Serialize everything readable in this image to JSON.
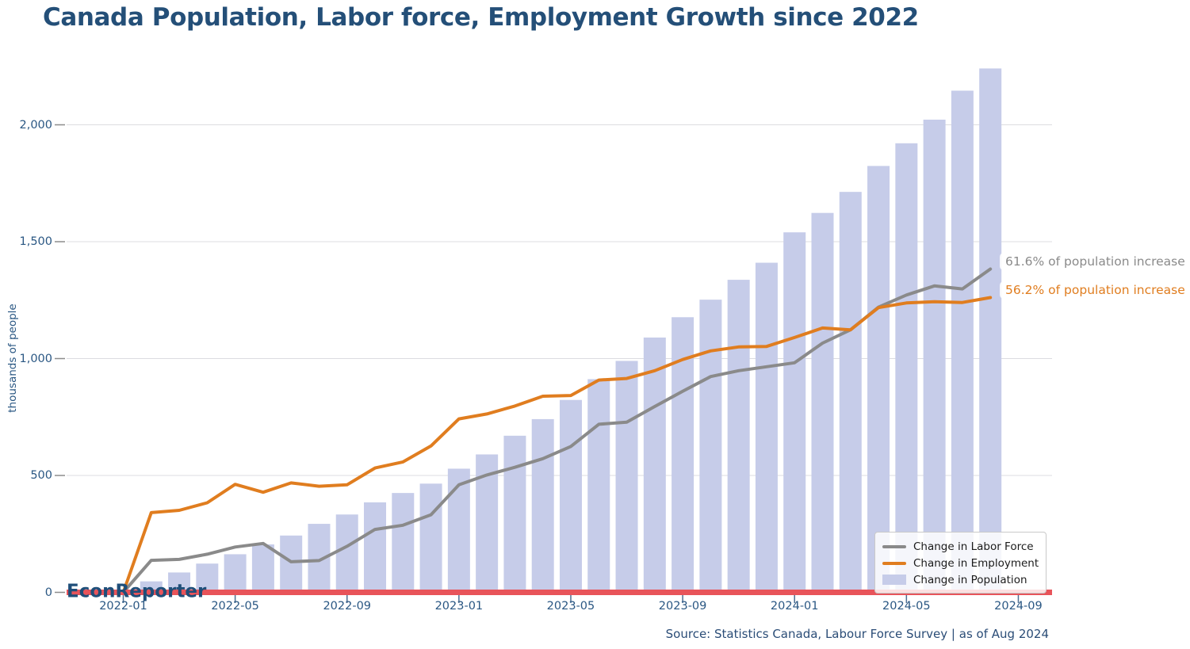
{
  "header": {
    "title": "Canada Population, Labor force, Employment Growth since 2022"
  },
  "watermark": "EconReporter",
  "source_note": "Source: Statistics Canada, Labour Force Survey | as of Aug 2024",
  "annotations": {
    "labor_force": "61.6% of population increase",
    "employment": "56.2% of population increase"
  },
  "colors": {
    "title_text": "#244f78",
    "axis_text": "#2a5783",
    "gridline": "#dcdce0",
    "y_tick_dash": "#8c8c8c",
    "x_tick_mark": "#4d6e92",
    "zero_baseline": "#e8545a",
    "bar_fill": "#c6cce9",
    "labor_force_line": "#8a8a8a",
    "employment_line": "#e07d1f"
  },
  "chart_data": {
    "type": "bar+line",
    "title": "Canada Population, Labor force, Employment Growth since 2022",
    "ylabel": "thousands of people",
    "xlabel": "",
    "grid": true,
    "legend_position": "lower right",
    "ylim": [
      0,
      2270
    ],
    "x": [
      "2022-01",
      "2022-02",
      "2022-03",
      "2022-04",
      "2022-05",
      "2022-06",
      "2022-07",
      "2022-08",
      "2022-09",
      "2022-10",
      "2022-11",
      "2022-12",
      "2023-01",
      "2023-02",
      "2023-03",
      "2023-04",
      "2023-05",
      "2023-06",
      "2023-07",
      "2023-08",
      "2023-09",
      "2023-10",
      "2023-11",
      "2023-12",
      "2024-01",
      "2024-02",
      "2024-03",
      "2024-04",
      "2024-05",
      "2024-06",
      "2024-07",
      "2024-08"
    ],
    "series": [
      {
        "name": "Change in Labor Force",
        "type": "line",
        "color": "#8a8a8a",
        "values": [
          0,
          137,
          141,
          163,
          194,
          209,
          131,
          136,
          197,
          269,
          287,
          332,
          460,
          502,
          535,
          572,
          624,
          719,
          728,
          795,
          860,
          923,
          948,
          965,
          982,
          1066,
          1123,
          1220,
          1272,
          1311,
          1298,
          1383
        ]
      },
      {
        "name": "Change in Employment",
        "type": "line",
        "color": "#e07d1f",
        "values": [
          0,
          341,
          351,
          383,
          462,
          428,
          468,
          454,
          460,
          532,
          558,
          626,
          742,
          763,
          797,
          839,
          842,
          908,
          915,
          948,
          996,
          1033,
          1050,
          1052,
          1090,
          1131,
          1123,
          1218,
          1238,
          1243,
          1240,
          1261
        ]
      },
      {
        "name": "Change in Population",
        "type": "bar",
        "color": "#c6cce9",
        "values": [
          0,
          47,
          85,
          123,
          163,
          205,
          243,
          293,
          333,
          385,
          425,
          465,
          529,
          590,
          670,
          741,
          823,
          912,
          990,
          1090,
          1177,
          1252,
          1337,
          1410,
          1540,
          1623,
          1713,
          1824,
          1921,
          2022,
          2146,
          2241
        ]
      }
    ],
    "yaxis_ticks": [
      {
        "value": 0,
        "label": "0"
      },
      {
        "value": 500,
        "label": "500"
      },
      {
        "value": 1000,
        "label": "1,000"
      },
      {
        "value": 1500,
        "label": "1,500"
      },
      {
        "value": 2000,
        "label": "2,000"
      }
    ],
    "xaxis_ticks": [
      {
        "index": 0,
        "label": "2022-01"
      },
      {
        "index": 4,
        "label": "2022-05"
      },
      {
        "index": 8,
        "label": "2022-09"
      },
      {
        "index": 12,
        "label": "2023-01"
      },
      {
        "index": 16,
        "label": "2023-05"
      },
      {
        "index": 20,
        "label": "2023-09"
      },
      {
        "index": 24,
        "label": "2024-01"
      },
      {
        "index": 28,
        "label": "2024-05"
      },
      {
        "index": 32,
        "label": "2024-09"
      }
    ]
  }
}
